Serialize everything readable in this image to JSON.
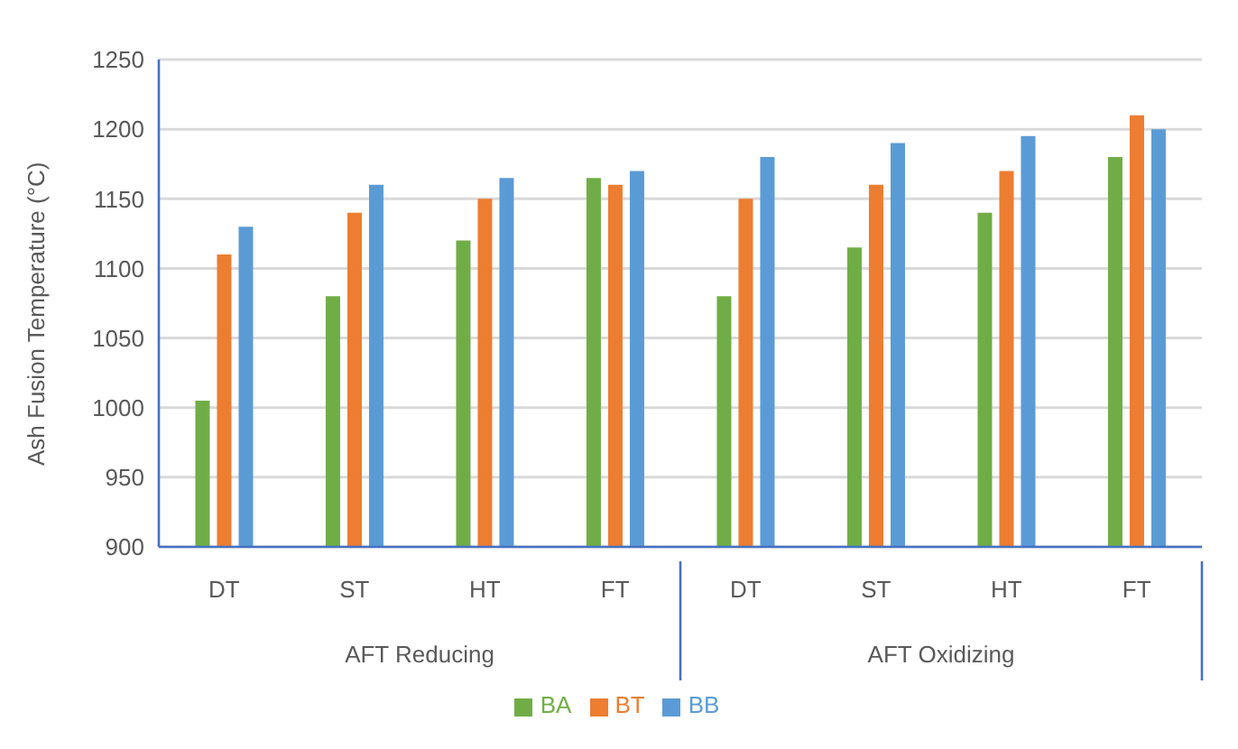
{
  "chart_data": {
    "type": "bar",
    "ylabel": "Ash Fusion Temperature (°C)",
    "categories": [
      "DT",
      "ST",
      "HT",
      "FT",
      "DT",
      "ST",
      "HT",
      "FT"
    ],
    "series": [
      {
        "name": "BA",
        "color": "#70ad47",
        "values": [
          1005,
          1080,
          1120,
          1165,
          1080,
          1115,
          1140,
          1180
        ]
      },
      {
        "name": "BT",
        "color": "#ed7d31",
        "values": [
          1110,
          1140,
          1150,
          1160,
          1150,
          1160,
          1170,
          1210
        ]
      },
      {
        "name": "BB",
        "color": "#5b9bd5",
        "values": [
          1130,
          1160,
          1165,
          1170,
          1180,
          1190,
          1195,
          1200
        ]
      }
    ],
    "ylim": [
      900,
      1250
    ],
    "yticks": [
      900,
      950,
      1000,
      1050,
      1100,
      1150,
      1200,
      1250
    ],
    "grid": "y",
    "legend": "bottom",
    "annotations": [
      "AFT Reducing",
      "AFT Oxidizing"
    ]
  }
}
